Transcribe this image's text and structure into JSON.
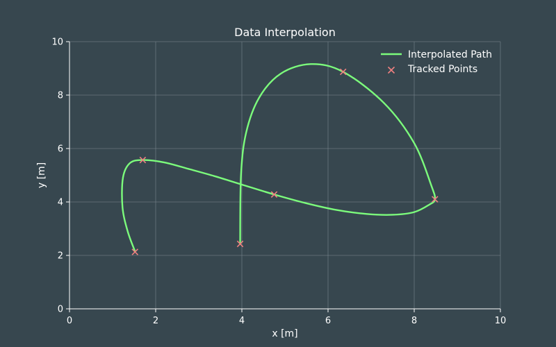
{
  "colors": {
    "background": "#37474f",
    "grid": "#7f8c93",
    "axis": "#ffffff",
    "text": "#ffffff",
    "path": "#7cfc7c",
    "points": "#f08080"
  },
  "chart_data": {
    "type": "line",
    "title": "Data Interpolation",
    "xlabel": "x [m]",
    "ylabel": "y [m]",
    "xlim": [
      0,
      10
    ],
    "ylim": [
      0,
      10
    ],
    "xticks": [
      0,
      2,
      4,
      6,
      8,
      10
    ],
    "yticks": [
      0,
      2,
      4,
      6,
      8,
      10
    ],
    "xtick_labels": [
      "0",
      "2",
      "4",
      "6",
      "8",
      "10"
    ],
    "ytick_labels": [
      "0",
      "2",
      "4",
      "6",
      "8",
      "10"
    ],
    "grid": true,
    "legend_position": "top-right",
    "series": [
      {
        "name": "Interpolated Path",
        "kind": "line",
        "color": "#7cfc7c",
        "x": [
          1.52,
          1.35,
          1.23,
          1.24,
          1.4,
          1.7,
          2.2,
          2.8,
          3.4,
          4.0,
          4.75,
          5.5,
          6.2,
          6.9,
          7.5,
          8.0,
          8.35,
          8.48,
          8.4,
          8.0,
          7.3,
          6.35,
          5.6,
          4.9,
          4.4,
          4.1,
          3.98,
          3.96
        ],
        "y": [
          2.15,
          2.9,
          3.8,
          4.9,
          5.45,
          5.57,
          5.48,
          5.22,
          4.95,
          4.65,
          4.28,
          3.95,
          3.7,
          3.55,
          3.52,
          3.62,
          3.9,
          4.1,
          4.6,
          6.2,
          7.7,
          8.87,
          9.16,
          8.8,
          7.9,
          6.6,
          5.0,
          2.42
        ]
      },
      {
        "name": "Tracked Points",
        "kind": "scatter",
        "marker": "x",
        "color": "#f08080",
        "x": [
          1.52,
          1.7,
          4.75,
          8.48,
          6.35,
          3.96
        ],
        "y": [
          2.13,
          5.57,
          4.28,
          4.1,
          8.87,
          2.43
        ]
      }
    ]
  }
}
